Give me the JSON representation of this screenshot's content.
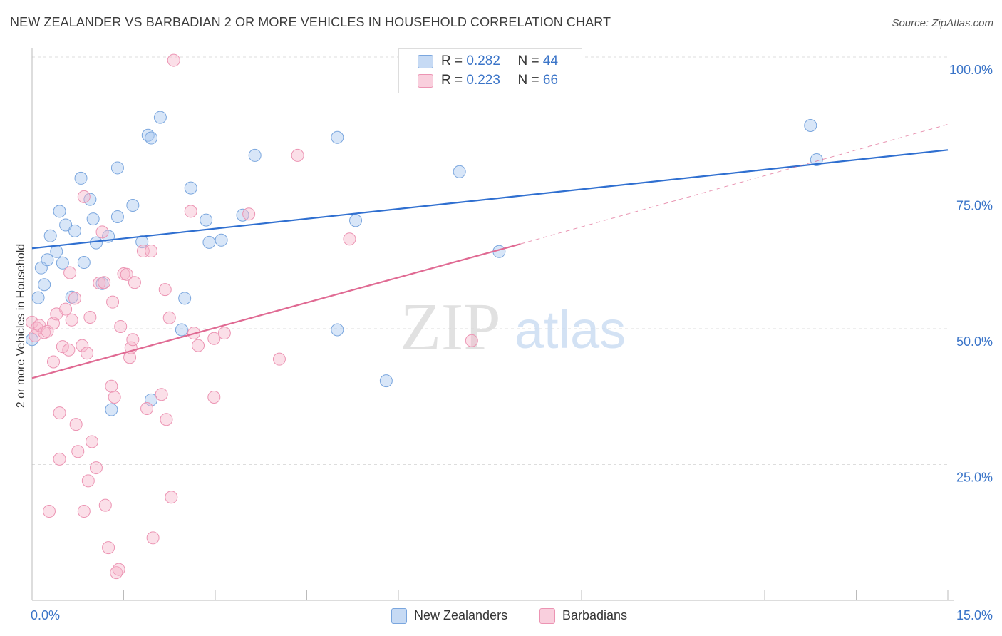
{
  "title": "NEW ZEALANDER VS BARBADIAN 2 OR MORE VEHICLES IN HOUSEHOLD CORRELATION CHART",
  "source": "Source: ZipAtlas.com",
  "watermark": {
    "zip": "ZIP",
    "atlas": "atlas"
  },
  "stats": [
    {
      "r_label": "R =",
      "r_value": "0.282",
      "n_label": "N =",
      "n_value": "44",
      "color": "#a9c8ef"
    },
    {
      "r_label": "R =",
      "r_value": "0.223",
      "n_label": "N =",
      "n_value": "66",
      "color": "#f6b8cd"
    }
  ],
  "legend": [
    {
      "label": "New Zealanders",
      "color": "#a9c8ef"
    },
    {
      "label": "Barbadians",
      "color": "#f6b8cd"
    }
  ],
  "colors": {
    "blue_fill": "#a9c8ef",
    "blue_stroke": "#7aa6de",
    "blue_line": "#2f6fd0",
    "pink_fill": "#f6b8cd",
    "pink_stroke": "#ec94b3",
    "pink_line": "#e06a93",
    "axis_text": "#3a74c8",
    "grid": "#dddddd"
  },
  "chart_data": {
    "type": "scatter",
    "title": "NEW ZEALANDER VS BARBADIAN 2 OR MORE VEHICLES IN HOUSEHOLD CORRELATION CHART",
    "xlabel": "",
    "ylabel": "2 or more Vehicles in Household",
    "xlim": [
      0,
      15
    ],
    "ylim": [
      0,
      100
    ],
    "x_tick_labels": [
      {
        "value": 0,
        "label": "0.0%"
      },
      {
        "value": 15,
        "label": "15.0%"
      }
    ],
    "y_tick_labels": [
      {
        "value": 25,
        "label": "25.0%"
      },
      {
        "value": 50,
        "label": "50.0%"
      },
      {
        "value": 75,
        "label": "75.0%"
      },
      {
        "value": 100,
        "label": "100.0%"
      }
    ],
    "grid": true,
    "legend_position": "bottom-center",
    "series": [
      {
        "name": "New Zealanders",
        "trend": {
          "x": [
            0,
            15
          ],
          "y": [
            64.8,
            82.9
          ]
        },
        "points": [
          {
            "x": 0.0,
            "y": 48.0
          },
          {
            "x": 0.1,
            "y": 55.7
          },
          {
            "x": 0.15,
            "y": 61.2
          },
          {
            "x": 0.2,
            "y": 58.1
          },
          {
            "x": 0.25,
            "y": 62.7
          },
          {
            "x": 0.3,
            "y": 67.1
          },
          {
            "x": 0.4,
            "y": 64.2
          },
          {
            "x": 0.45,
            "y": 71.6
          },
          {
            "x": 0.5,
            "y": 62.1
          },
          {
            "x": 0.55,
            "y": 69.1
          },
          {
            "x": 0.65,
            "y": 55.8
          },
          {
            "x": 0.7,
            "y": 68.0
          },
          {
            "x": 0.8,
            "y": 77.7
          },
          {
            "x": 0.85,
            "y": 62.2
          },
          {
            "x": 0.95,
            "y": 73.8
          },
          {
            "x": 1.0,
            "y": 70.2
          },
          {
            "x": 1.05,
            "y": 65.8
          },
          {
            "x": 1.15,
            "y": 58.3
          },
          {
            "x": 1.25,
            "y": 67.0
          },
          {
            "x": 1.3,
            "y": 35.1
          },
          {
            "x": 1.4,
            "y": 70.6
          },
          {
            "x": 1.4,
            "y": 79.6
          },
          {
            "x": 1.65,
            "y": 72.7
          },
          {
            "x": 1.8,
            "y": 66.0
          },
          {
            "x": 1.9,
            "y": 85.6
          },
          {
            "x": 1.95,
            "y": 85.1
          },
          {
            "x": 1.95,
            "y": 36.9
          },
          {
            "x": 2.1,
            "y": 88.9
          },
          {
            "x": 2.45,
            "y": 49.8
          },
          {
            "x": 2.5,
            "y": 55.6
          },
          {
            "x": 2.6,
            "y": 75.9
          },
          {
            "x": 2.85,
            "y": 70.0
          },
          {
            "x": 2.9,
            "y": 65.9
          },
          {
            "x": 3.1,
            "y": 66.3
          },
          {
            "x": 3.45,
            "y": 70.9
          },
          {
            "x": 3.65,
            "y": 81.9
          },
          {
            "x": 5.0,
            "y": 85.2
          },
          {
            "x": 5.0,
            "y": 49.8
          },
          {
            "x": 5.3,
            "y": 69.9
          },
          {
            "x": 5.8,
            "y": 40.4
          },
          {
            "x": 7.0,
            "y": 78.9
          },
          {
            "x": 7.65,
            "y": 64.2
          },
          {
            "x": 12.75,
            "y": 87.4
          },
          {
            "x": 12.85,
            "y": 81.1
          }
        ]
      },
      {
        "name": "Barbadians",
        "trend": {
          "x": [
            0,
            8.0
          ],
          "y": [
            40.9,
            65.6
          ]
        },
        "trend_extension": {
          "x": [
            8.0,
            15
          ],
          "y": [
            65.6,
            87.6
          ]
        },
        "points": [
          {
            "x": 0.0,
            "y": 51.2
          },
          {
            "x": 0.05,
            "y": 48.7
          },
          {
            "x": 0.08,
            "y": 50.1
          },
          {
            "x": 0.12,
            "y": 50.6
          },
          {
            "x": 0.2,
            "y": 49.3
          },
          {
            "x": 0.25,
            "y": 49.5
          },
          {
            "x": 0.28,
            "y": 16.4
          },
          {
            "x": 0.35,
            "y": 51.0
          },
          {
            "x": 0.35,
            "y": 43.9
          },
          {
            "x": 0.4,
            "y": 52.7
          },
          {
            "x": 0.45,
            "y": 26.0
          },
          {
            "x": 0.45,
            "y": 34.5
          },
          {
            "x": 0.5,
            "y": 46.7
          },
          {
            "x": 0.55,
            "y": 53.6
          },
          {
            "x": 0.6,
            "y": 46.1
          },
          {
            "x": 0.62,
            "y": 60.3
          },
          {
            "x": 0.65,
            "y": 51.6
          },
          {
            "x": 0.7,
            "y": 55.6
          },
          {
            "x": 0.72,
            "y": 32.4
          },
          {
            "x": 0.75,
            "y": 27.4
          },
          {
            "x": 0.82,
            "y": 46.9
          },
          {
            "x": 0.85,
            "y": 74.3
          },
          {
            "x": 0.85,
            "y": 16.4
          },
          {
            "x": 0.9,
            "y": 45.5
          },
          {
            "x": 0.92,
            "y": 22.0
          },
          {
            "x": 0.95,
            "y": 52.1
          },
          {
            "x": 0.98,
            "y": 29.2
          },
          {
            "x": 1.05,
            "y": 24.4
          },
          {
            "x": 1.1,
            "y": 58.4
          },
          {
            "x": 1.15,
            "y": 67.8
          },
          {
            "x": 1.2,
            "y": 17.5
          },
          {
            "x": 1.25,
            "y": 9.7
          },
          {
            "x": 1.3,
            "y": 39.4
          },
          {
            "x": 1.32,
            "y": 54.9
          },
          {
            "x": 1.35,
            "y": 37.4
          },
          {
            "x": 1.38,
            "y": 5.1
          },
          {
            "x": 1.42,
            "y": 5.7
          },
          {
            "x": 1.45,
            "y": 50.4
          },
          {
            "x": 1.5,
            "y": 60.1
          },
          {
            "x": 1.55,
            "y": 60.0
          },
          {
            "x": 1.6,
            "y": 44.7
          },
          {
            "x": 1.62,
            "y": 46.5
          },
          {
            "x": 1.65,
            "y": 48.0
          },
          {
            "x": 1.68,
            "y": 58.5
          },
          {
            "x": 1.82,
            "y": 64.3
          },
          {
            "x": 1.88,
            "y": 35.3
          },
          {
            "x": 1.95,
            "y": 64.3
          },
          {
            "x": 1.98,
            "y": 11.5
          },
          {
            "x": 2.12,
            "y": 37.9
          },
          {
            "x": 2.18,
            "y": 57.2
          },
          {
            "x": 2.2,
            "y": 33.3
          },
          {
            "x": 2.25,
            "y": 52.0
          },
          {
            "x": 2.28,
            "y": 19.0
          },
          {
            "x": 2.32,
            "y": 99.4
          },
          {
            "x": 2.6,
            "y": 71.6
          },
          {
            "x": 2.65,
            "y": 49.2
          },
          {
            "x": 2.72,
            "y": 46.9
          },
          {
            "x": 2.98,
            "y": 48.2
          },
          {
            "x": 2.98,
            "y": 37.4
          },
          {
            "x": 3.15,
            "y": 49.2
          },
          {
            "x": 3.55,
            "y": 71.1
          },
          {
            "x": 4.05,
            "y": 44.4
          },
          {
            "x": 4.35,
            "y": 81.9
          },
          {
            "x": 5.2,
            "y": 66.5
          },
          {
            "x": 7.2,
            "y": 47.8
          },
          {
            "x": 1.18,
            "y": 58.5
          }
        ]
      }
    ]
  }
}
